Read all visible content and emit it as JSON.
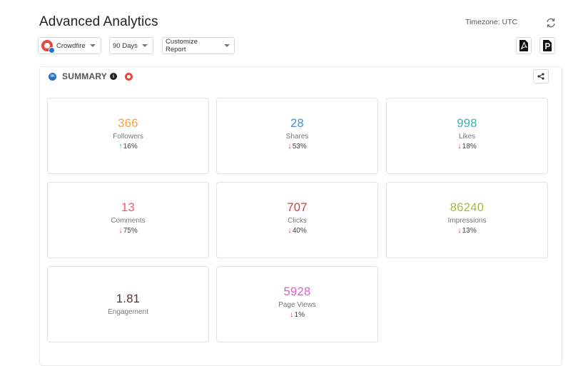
{
  "header": {
    "title": "Advanced Analytics",
    "timezone": "Timezone: UTC"
  },
  "toolbar": {
    "account": "Crowdfire",
    "period": "90 Days",
    "report": "Customize Report"
  },
  "summary": {
    "title": "SUMMARY",
    "info": "i",
    "network_badge": "in"
  },
  "colors": {
    "up": "#2bb673",
    "down": "#e53935"
  },
  "metrics": [
    {
      "value": "366",
      "label": "Followers",
      "arrow": "↑",
      "change": "16%",
      "trend": "up",
      "color": "#f0a33a"
    },
    {
      "value": "28",
      "label": "Shares",
      "arrow": "↓",
      "change": "53%",
      "trend": "down",
      "color": "#3e8fe0"
    },
    {
      "value": "998",
      "label": "Likes",
      "arrow": "↓",
      "change": "18%",
      "trend": "down",
      "color": "#33b8b0"
    },
    {
      "value": "13",
      "label": "Comments",
      "arrow": "↓",
      "change": "75%",
      "trend": "down",
      "color": "#f0566d"
    },
    {
      "value": "707",
      "label": "Clicks",
      "arrow": "↓",
      "change": "40%",
      "trend": "down",
      "color": "#d63a3a"
    },
    {
      "value": "86240",
      "label": "Impressions",
      "arrow": "↓",
      "change": "13%",
      "trend": "down",
      "color": "#a9b83a"
    },
    {
      "value": "1.81",
      "label": "Engagement",
      "arrow": "",
      "change": "",
      "trend": "none",
      "color": "#5a2e2e"
    },
    {
      "value": "5928",
      "label": "Page Views",
      "arrow": "↓",
      "change": "1%",
      "trend": "down",
      "color": "#e15ad6"
    }
  ]
}
